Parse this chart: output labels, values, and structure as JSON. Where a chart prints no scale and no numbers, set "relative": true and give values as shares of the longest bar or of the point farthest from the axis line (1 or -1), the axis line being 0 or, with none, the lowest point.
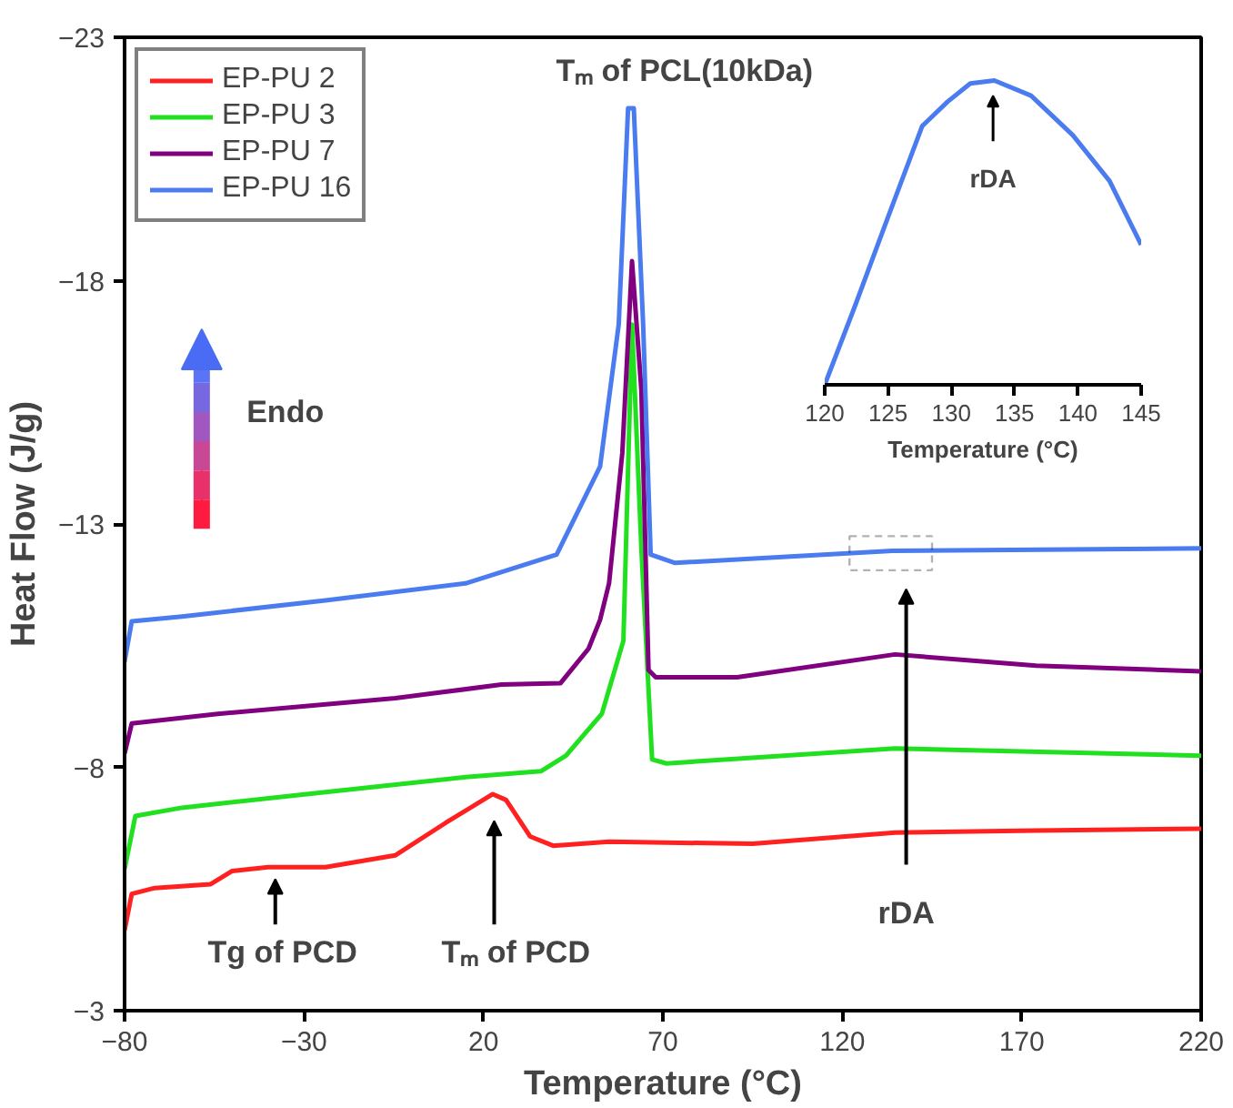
{
  "chart_data": [
    {
      "type": "line",
      "xlabel": "Temperature (°C)",
      "ylabel": "Heat Flow (J/g)",
      "xlim": [
        -80,
        220
      ],
      "xticks": [
        -80,
        -30,
        20,
        70,
        120,
        170,
        220
      ],
      "ylim": [
        -3,
        -23
      ],
      "yticks": [
        -23,
        -18,
        -13,
        -8,
        -3
      ],
      "legend": "top left",
      "grid": false,
      "series": [
        {
          "name": "EP-PU 2",
          "color": "#ff2020",
          "x": [
            -80,
            -78,
            -71.6,
            -56,
            -50,
            -40,
            -24,
            -4.6,
            9.5,
            22.6,
            26.3,
            33,
            39.4,
            55,
            95,
            134.7,
            174,
            220
          ],
          "values": [
            -4.65,
            -5.4,
            -5.52,
            -5.6,
            -5.87,
            -5.95,
            -5.95,
            -6.19,
            -6.86,
            -7.45,
            -7.33,
            -6.58,
            -6.39,
            -6.47,
            -6.43,
            -6.66,
            -6.7,
            -6.74
          ]
        },
        {
          "name": "EP-PU 3",
          "color": "#20e020",
          "x": [
            -80,
            -77,
            -64,
            -24,
            15,
            36,
            43,
            53,
            59,
            61.4,
            64,
            67,
            71,
            134.7,
            220
          ],
          "values": [
            -5.91,
            -7.0,
            -7.17,
            -7.49,
            -7.8,
            -7.92,
            -8.24,
            -9.1,
            -10.6,
            -17.1,
            -12.5,
            -8.16,
            -8.08,
            -8.39,
            -8.24
          ]
        },
        {
          "name": "EP-PU 7",
          "color": "#800080",
          "x": [
            -80,
            -78,
            -54,
            -4.6,
            25,
            41.5,
            49.3,
            52.5,
            55,
            58.7,
            61.4,
            64,
            66,
            68,
            90.7,
            134.7,
            174,
            220
          ],
          "values": [
            -8.28,
            -8.9,
            -9.1,
            -9.42,
            -9.7,
            -9.73,
            -10.44,
            -11.03,
            -11.78,
            -14.46,
            -18.4,
            -15.76,
            -10.0,
            -9.85,
            -9.85,
            -10.32,
            -10.09,
            -9.97
          ]
        },
        {
          "name": "EP-PU 16",
          "color": "#4a7cf0",
          "x": [
            -80,
            -78,
            -64,
            -24,
            15,
            40.4,
            52.5,
            57.7,
            60.3,
            61.9,
            64.5,
            66.6,
            73.4,
            134,
            220
          ],
          "values": [
            -10.17,
            -11.0,
            -11.1,
            -11.43,
            -11.78,
            -12.37,
            -14.18,
            -17.1,
            -21.54,
            -21.54,
            -17.1,
            -12.37,
            -12.2,
            -12.45,
            -12.5
          ]
        }
      ],
      "annotations": [
        {
          "text": "Tₘ of PCL(10kDa)",
          "x": 61,
          "y": -21.5
        },
        "Tg of PCD",
        "Tₘ of PCD",
        "rDA",
        "Endo"
      ]
    },
    {
      "type": "line",
      "relative": true,
      "xlabel": "Temperature (°C)",
      "xlim": [
        120,
        145
      ],
      "xticks": [
        120,
        125,
        130,
        135,
        140,
        145
      ],
      "tick_labels": "x",
      "grid": false,
      "series": [
        {
          "color": "#4a7cf0",
          "x": [
            120,
            122.4,
            124.9,
            127.7,
            129.7,
            131.5,
            133.4,
            136.3,
            139.6,
            142.5,
            145
          ],
          "values": [
            0,
            0.26,
            0.54,
            0.85,
            0.93,
            0.99,
            1.0,
            0.95,
            0.82,
            0.67,
            0.46
          ]
        }
      ],
      "annotations": [
        {
          "text": "rDA",
          "x": 133.3,
          "y": 1.0
        }
      ]
    }
  ]
}
